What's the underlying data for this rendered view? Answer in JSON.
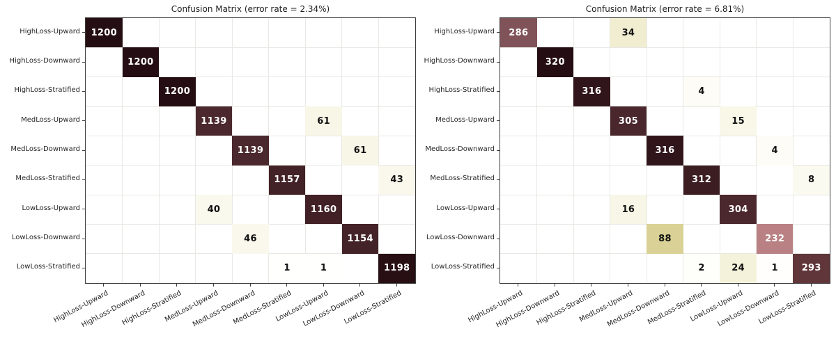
{
  "figure": {
    "background": "#ffffff"
  },
  "style": {
    "title_color": "#1f1f1f",
    "label_color": "#262626",
    "spine_color": "#3c3c3c",
    "grid_color": "#e8e8e4",
    "annotation_dark_text": "#111111",
    "annotation_light_text": "#ffffff",
    "colormap_name": "pink_r",
    "colormap_anchors": [
      {
        "t": 0.0,
        "c": "#ffffff"
      },
      {
        "t": 0.013,
        "c": "#fdfcf6"
      },
      {
        "t": 0.05,
        "c": "#f8f6e7"
      },
      {
        "t": 0.08,
        "c": "#f4f1da"
      },
      {
        "t": 0.11,
        "c": "#efecd0"
      },
      {
        "t": 0.28,
        "c": "#d8d093"
      },
      {
        "t": 0.5,
        "c": "#cbaa8c"
      },
      {
        "t": 0.73,
        "c": "#b98083"
      },
      {
        "t": 0.9,
        "c": "#7e5156"
      },
      {
        "t": 0.92,
        "c": "#572e34"
      },
      {
        "t": 0.95,
        "c": "#4b282d"
      },
      {
        "t": 0.965,
        "c": "#422227"
      },
      {
        "t": 0.976,
        "c": "#3a1c21"
      },
      {
        "t": 0.99,
        "c": "#2e141a"
      },
      {
        "t": 1.0,
        "c": "#250e13"
      }
    ]
  },
  "chart_data": [
    {
      "type": "heatmap",
      "title": "Confusion Matrix (error rate = 2.34%)",
      "error_rate_percent": 2.34,
      "vmax": 1200,
      "grid": true,
      "categories": [
        "HighLoss-Upward",
        "HighLoss-Downward",
        "HighLoss-Stratified",
        "MedLoss-Upward",
        "MedLoss-Downward",
        "MedLoss-Stratified",
        "LowLoss-Upward",
        "LowLoss-Downward",
        "LowLoss-Stratified"
      ],
      "matrix": [
        [
          1200,
          0,
          0,
          0,
          0,
          0,
          0,
          0,
          0
        ],
        [
          0,
          1200,
          0,
          0,
          0,
          0,
          0,
          0,
          0
        ],
        [
          0,
          0,
          1200,
          0,
          0,
          0,
          0,
          0,
          0
        ],
        [
          0,
          0,
          0,
          1139,
          0,
          0,
          61,
          0,
          0
        ],
        [
          0,
          0,
          0,
          0,
          1139,
          0,
          0,
          61,
          0
        ],
        [
          0,
          0,
          0,
          0,
          0,
          1157,
          0,
          0,
          43
        ],
        [
          0,
          0,
          0,
          40,
          0,
          0,
          1160,
          0,
          0
        ],
        [
          0,
          0,
          0,
          0,
          46,
          0,
          0,
          1154,
          0
        ],
        [
          0,
          0,
          0,
          0,
          0,
          1,
          1,
          0,
          1198
        ]
      ]
    },
    {
      "type": "heatmap",
      "title": "Confusion Matrix (error rate = 6.81%)",
      "error_rate_percent": 6.81,
      "vmax": 320,
      "grid": true,
      "categories": [
        "HighLoss-Upward",
        "HighLoss-Downward",
        "HighLoss-Stratified",
        "MedLoss-Upward",
        "MedLoss-Downward",
        "MedLoss-Stratified",
        "LowLoss-Upward",
        "LowLoss-Downward",
        "LowLoss-Stratified"
      ],
      "matrix": [
        [
          286,
          0,
          0,
          34,
          0,
          0,
          0,
          0,
          0
        ],
        [
          0,
          320,
          0,
          0,
          0,
          0,
          0,
          0,
          0
        ],
        [
          0,
          0,
          316,
          0,
          0,
          4,
          0,
          0,
          0
        ],
        [
          0,
          0,
          0,
          305,
          0,
          0,
          15,
          0,
          0
        ],
        [
          0,
          0,
          0,
          0,
          316,
          0,
          0,
          4,
          0
        ],
        [
          0,
          0,
          0,
          0,
          0,
          312,
          0,
          0,
          8
        ],
        [
          0,
          0,
          0,
          16,
          0,
          0,
          304,
          0,
          0
        ],
        [
          0,
          0,
          0,
          0,
          88,
          0,
          0,
          232,
          0
        ],
        [
          0,
          0,
          0,
          0,
          0,
          2,
          24,
          1,
          293
        ]
      ]
    }
  ]
}
